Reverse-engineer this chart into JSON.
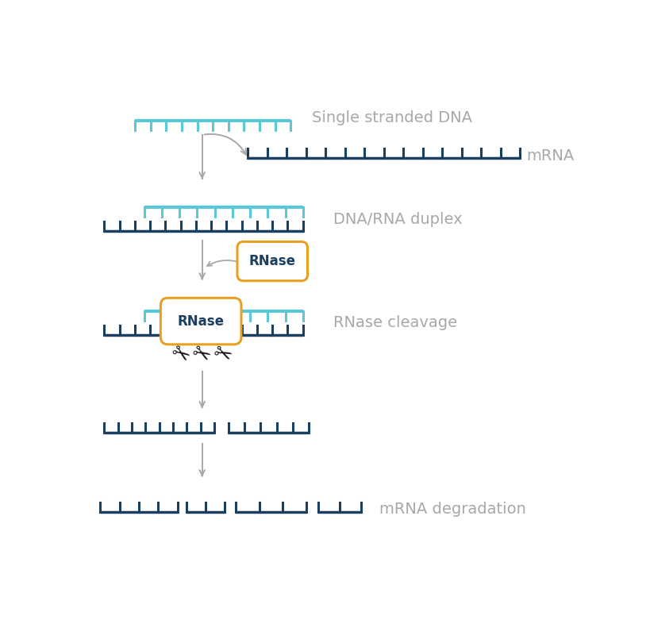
{
  "bg_color": "#ffffff",
  "dna_color": "#5bc8d8",
  "mrna_color": "#1b3f5e",
  "arrow_color": "#a8a8a8",
  "label_color": "#a8a8a8",
  "rnase_border": "#e8a020",
  "rnase_text_color": "#1b3f5e",
  "labels": {
    "ssDNA": "Single stranded DNA",
    "mRNA": "mRNA",
    "duplex": "DNA/RNA duplex",
    "cleavage": "RNase cleavage",
    "degradation": "mRNA degradation",
    "rnase": "RNase"
  },
  "label_fontsize": 14,
  "rnase_fontsize": 12
}
